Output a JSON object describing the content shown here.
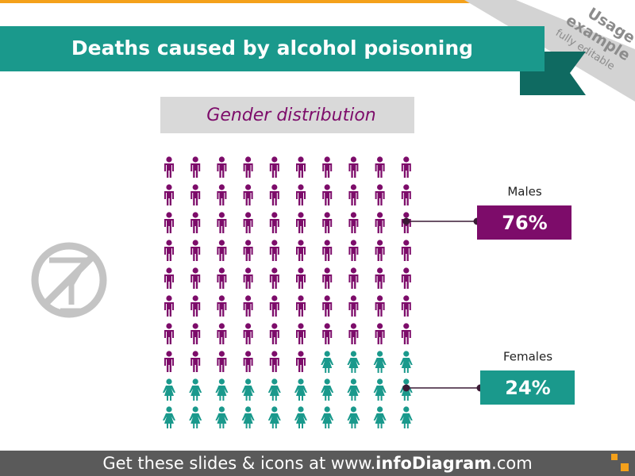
{
  "chart_data": {
    "type": "pictogram",
    "title": "Deaths caused by alcohol poisoning",
    "subtitle": "Gender distribution",
    "categories": [
      "Males",
      "Females"
    ],
    "values": [
      76,
      24
    ],
    "value_labels": [
      "76%",
      "24%"
    ],
    "colors": [
      "#7d0c6a",
      "#1a998c"
    ],
    "annotations": [
      "Usage",
      "example",
      "fully editable"
    ],
    "footer": [
      "Get these slides & icons at www.",
      "infoDiagram",
      ".com"
    ]
  }
}
